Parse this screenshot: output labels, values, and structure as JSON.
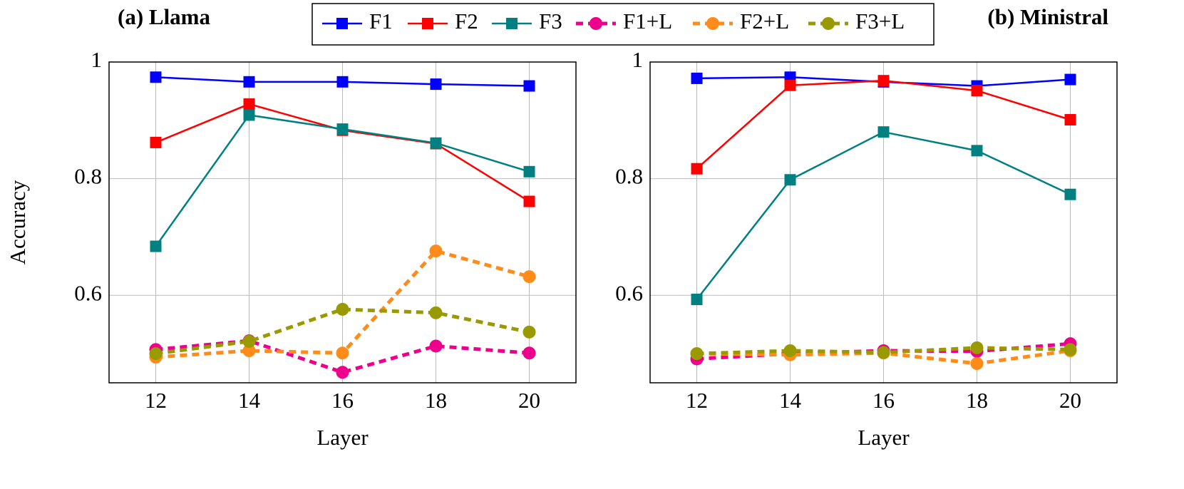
{
  "chart_data": [
    {
      "type": "line",
      "title": "(a) Llama",
      "xlabel": "Layer",
      "ylabel": "Accuracy",
      "x": [
        12,
        14,
        16,
        18,
        20
      ],
      "xlim": [
        11,
        21
      ],
      "xticks": [
        12,
        14,
        16,
        18,
        20
      ],
      "ylim": [
        0.45,
        1
      ],
      "yticks": [
        0.6,
        0.8,
        1
      ],
      "grid": true,
      "series": [
        {
          "name": "F1",
          "color": "#0000ff",
          "linestyle": "solid",
          "marker": "square",
          "values": [
            0.974,
            0.966,
            0.966,
            0.962,
            0.959
          ]
        },
        {
          "name": "F2",
          "color": "#ff0000",
          "linestyle": "solid",
          "marker": "square",
          "values": [
            0.862,
            0.928,
            0.883,
            0.86,
            0.761
          ]
        },
        {
          "name": "F3",
          "color": "#008080",
          "linestyle": "solid",
          "marker": "square",
          "values": [
            0.684,
            0.909,
            0.885,
            0.861,
            0.812
          ]
        },
        {
          "name": "F1+L",
          "color": "#ec008c",
          "linestyle": "dashed",
          "marker": "circle",
          "values": [
            0.507,
            0.522,
            0.468,
            0.513,
            0.501
          ]
        },
        {
          "name": "F2+L",
          "color": "#ff8c1a",
          "linestyle": "dashed",
          "marker": "circle",
          "values": [
            0.494,
            0.505,
            0.501,
            0.676,
            0.632
          ]
        },
        {
          "name": "F3+L",
          "color": "#999900",
          "linestyle": "dashed",
          "marker": "circle",
          "values": [
            0.5,
            0.521,
            0.576,
            0.57,
            0.537
          ]
        }
      ]
    },
    {
      "type": "line",
      "title": "(b) Ministral",
      "xlabel": "Layer",
      "x": [
        12,
        14,
        16,
        18,
        20
      ],
      "xlim": [
        11,
        21
      ],
      "xticks": [
        12,
        14,
        16,
        18,
        20
      ],
      "ylim": [
        0.45,
        1
      ],
      "yticks": [
        0.6,
        0.8,
        1
      ],
      "grid": true,
      "series": [
        {
          "color": "#0000ff",
          "linestyle": "solid",
          "marker": "square",
          "values": [
            0.972,
            0.974,
            0.966,
            0.959,
            0.97
          ]
        },
        {
          "color": "#ff0000",
          "linestyle": "solid",
          "marker": "square",
          "values": [
            0.817,
            0.96,
            0.968,
            0.951,
            0.901
          ]
        },
        {
          "color": "#008080",
          "linestyle": "solid",
          "marker": "square",
          "values": [
            0.593,
            0.798,
            0.88,
            0.848,
            0.773
          ]
        },
        {
          "color": "#ec008c",
          "linestyle": "dashed",
          "marker": "circle",
          "values": [
            0.491,
            0.5,
            0.505,
            0.504,
            0.517
          ]
        },
        {
          "color": "#ff8c1a",
          "linestyle": "dashed",
          "marker": "circle",
          "values": [
            0.5,
            0.498,
            0.501,
            0.483,
            0.505
          ]
        },
        {
          "color": "#999900",
          "linestyle": "dashed",
          "marker": "circle",
          "values": [
            0.5,
            0.505,
            0.502,
            0.51,
            0.507
          ]
        }
      ]
    }
  ]
}
